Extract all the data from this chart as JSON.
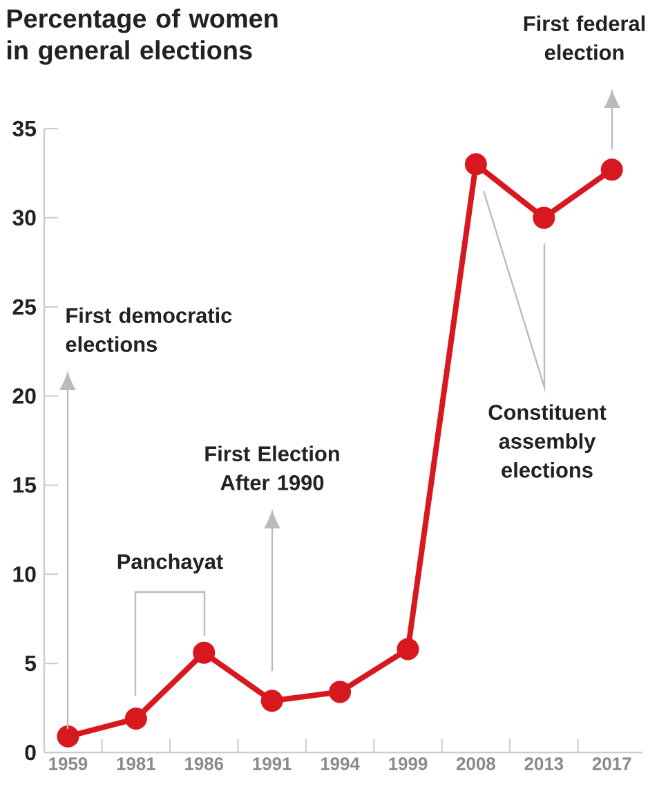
{
  "chart_data": {
    "type": "line",
    "title": "Percentage of women in general elections",
    "categories": [
      "1959",
      "1981",
      "1986",
      "1991",
      "1994",
      "1999",
      "2008",
      "2013",
      "2017"
    ],
    "series": [
      {
        "color": "#d7191f",
        "values": [
          0.9,
          1.9,
          5.6,
          2.9,
          3.4,
          5.8,
          33.0,
          30.0,
          32.7
        ]
      }
    ],
    "ylim": [
      0,
      35
    ],
    "yticks": [
      0,
      5,
      10,
      15,
      20,
      25,
      30,
      35
    ],
    "marker": "circle",
    "line_style": "solid",
    "annotations": [
      "First democratic elections",
      "Panchayat",
      "First Election After 1990",
      "Constituent assembly elections",
      "First federal election"
    ]
  }
}
